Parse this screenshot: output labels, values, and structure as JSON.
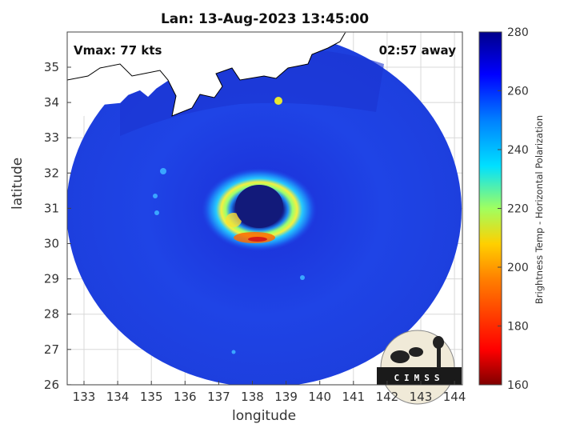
{
  "title": "Lan: 13-Aug-2023 13:45:00",
  "vmax_label": "Vmax: 77 kts",
  "time_label": "02:57 away",
  "xlabel": "longitude",
  "ylabel": "latitude",
  "colorbar_label": "Brightness Temp - Horizontal Polarization",
  "logo_text": "CIMSS",
  "x_ticks": [
    "133",
    "134",
    "135",
    "136",
    "137",
    "138",
    "139",
    "140",
    "141",
    "142",
    "143",
    "144"
  ],
  "y_ticks": [
    "35",
    "34",
    "33",
    "32",
    "31",
    "30",
    "29",
    "28",
    "27",
    "26"
  ],
  "colorbar_ticks": [
    "280",
    "260",
    "240",
    "220",
    "200",
    "180",
    "160"
  ],
  "colors": {
    "colormap": "jet (reversed)",
    "background_scene": "#1a3cdc",
    "eye": "#121a7a",
    "coastline": "#ffffff"
  }
}
